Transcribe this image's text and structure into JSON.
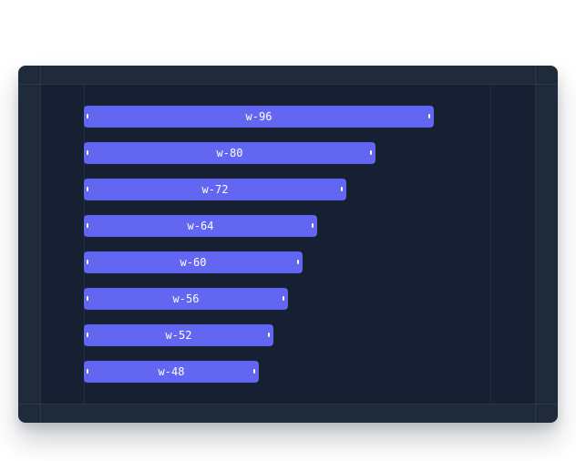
{
  "bars": [
    {
      "label": "w-96",
      "width_units": 96
    },
    {
      "label": "w-80",
      "width_units": 80
    },
    {
      "label": "w-72",
      "width_units": 72
    },
    {
      "label": "w-64",
      "width_units": 64
    },
    {
      "label": "w-60",
      "width_units": 60
    },
    {
      "label": "w-56",
      "width_units": 56
    },
    {
      "label": "w-52",
      "width_units": 52
    },
    {
      "label": "w-48",
      "width_units": 48
    }
  ],
  "colors": {
    "frame": "#1f2a3b",
    "canvas": "#172033",
    "bar": "#6366f1",
    "text": "#ffffff"
  }
}
